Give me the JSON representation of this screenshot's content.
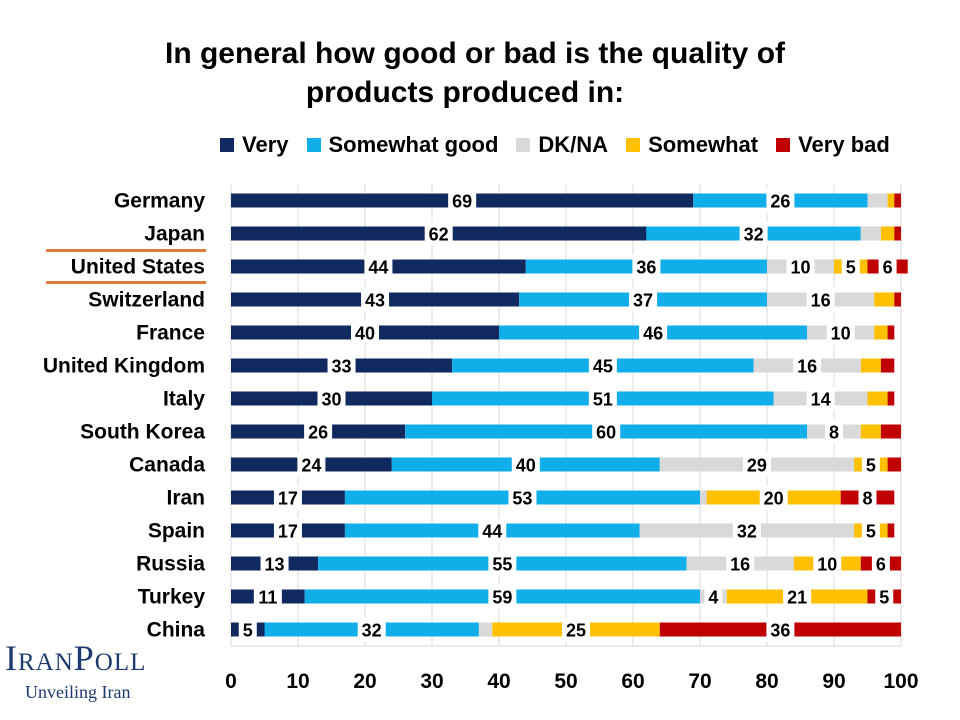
{
  "chart_data": {
    "type": "bar",
    "orientation": "horizontal",
    "stacked": true,
    "title": "In general how good or bad is the quality of products produced in:",
    "title_lines": [
      "In general how good or bad is the quality of",
      "products produced in:"
    ],
    "categories": [
      "Germany",
      "Japan",
      "United States",
      "Switzerland",
      "France",
      "United Kingdom",
      "Italy",
      "South Korea",
      "Canada",
      "Iran",
      "Spain",
      "Russia",
      "Turkey",
      "China"
    ],
    "highlighted_category": "United States",
    "series": [
      {
        "name": "Very",
        "color": "#10295e",
        "values": [
          69,
          62,
          44,
          43,
          40,
          33,
          30,
          26,
          24,
          17,
          17,
          13,
          11,
          5
        ],
        "labels": [
          "69",
          "62",
          "44",
          "43",
          "40",
          "33",
          "30",
          "26",
          "24",
          "17",
          "17",
          "13",
          "11",
          "5"
        ]
      },
      {
        "name": "Somewhat good",
        "color": "#12aeea",
        "values": [
          26,
          32,
          36,
          37,
          46,
          45,
          51,
          60,
          40,
          53,
          44,
          55,
          59,
          32
        ],
        "labels": [
          "26",
          "32",
          "36",
          "37",
          "46",
          "45",
          "51",
          "60",
          "40",
          "53",
          "44",
          "55",
          "59",
          "32"
        ]
      },
      {
        "name": "DK/NA",
        "color": "#d9d9d9",
        "values": [
          3,
          3,
          10,
          16,
          10,
          16,
          14,
          8,
          29,
          1,
          32,
          16,
          4,
          2
        ],
        "labels": [
          "",
          "",
          "10",
          "16",
          "10",
          "16",
          "14",
          "8",
          "29",
          "",
          "32",
          "16",
          "4",
          ""
        ]
      },
      {
        "name": "Somewhat",
        "color": "#ffc000",
        "values": [
          1,
          2,
          5,
          3,
          2,
          3,
          3,
          3,
          5,
          20,
          5,
          10,
          21,
          25
        ],
        "labels": [
          "",
          "",
          "5",
          "",
          "",
          "",
          "",
          "",
          "5",
          "20",
          "5",
          "10",
          "21",
          "25"
        ]
      },
      {
        "name": "Very bad",
        "color": "#c00000",
        "values": [
          1,
          1,
          6,
          1,
          1,
          2,
          1,
          3,
          2,
          8,
          1,
          6,
          5,
          36
        ],
        "labels": [
          "",
          "",
          "6",
          "",
          "",
          "",
          "",
          "",
          "",
          "8",
          "",
          "6",
          "5",
          "36"
        ]
      }
    ],
    "legend": [
      "Very",
      "Somewhat good",
      "DK/NA",
      "Somewhat",
      "Very bad"
    ],
    "legend_position": "top",
    "xlim": [
      0,
      100
    ],
    "xticks": [
      0,
      10,
      20,
      30,
      40,
      50,
      60,
      70,
      80,
      90,
      100
    ],
    "xlabel": "",
    "ylabel": "",
    "grid": "vertical"
  },
  "branding": {
    "logo_text": "IranPoll",
    "tagline": "Unveiling Iran",
    "accent_color": "#e07b39"
  }
}
